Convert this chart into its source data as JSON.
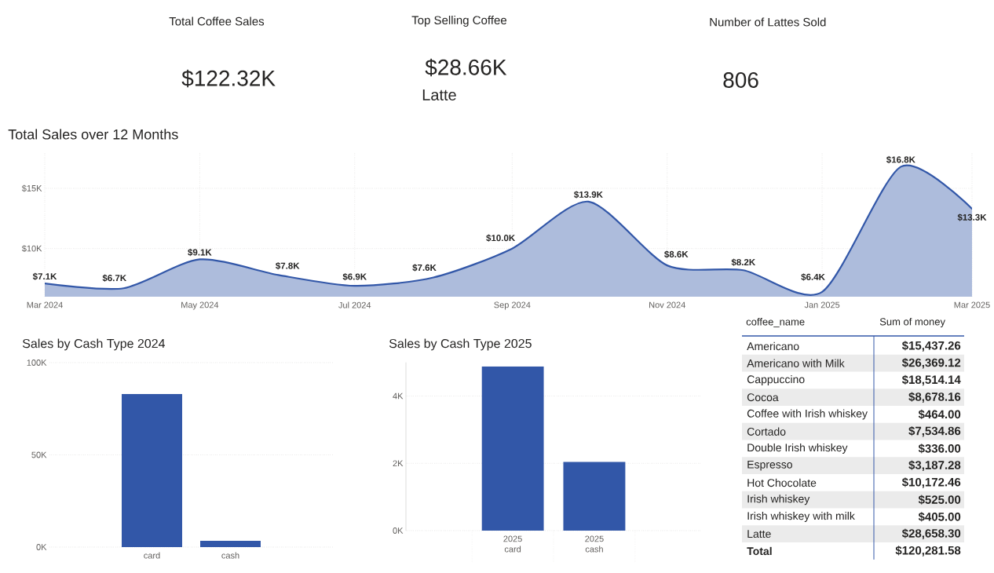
{
  "chart_data": [
    {
      "type": "other",
      "title": "Total Coffee Sales",
      "annotations": [
        "$122.32K"
      ]
    },
    {
      "type": "other",
      "title": "Top Selling Coffee",
      "annotations": [
        "$28.66K",
        "Latte"
      ]
    },
    {
      "type": "other",
      "title": "Number of Lattes Sold",
      "annotations": [
        "806"
      ]
    },
    {
      "type": "area",
      "title": "Total Sales over 12 Months",
      "x": [
        "2024-03",
        "2024-04",
        "2024-05",
        "2024-06",
        "2024-07",
        "2024-08",
        "2024-09",
        "2024-10",
        "2024-11",
        "2024-12",
        "2025-01",
        "2025-02",
        "2025-03"
      ],
      "values": [
        7100,
        6700,
        9100,
        7800,
        6900,
        7600,
        10000,
        13900,
        8600,
        8200,
        6400,
        16800,
        13300
      ],
      "value_labels": [
        "$7.1K",
        "$6.7K",
        "$9.1K",
        "$7.8K",
        "$6.9K",
        "$7.6K",
        "$10.0K",
        "$13.9K",
        "$8.6K",
        "$8.2K",
        "$6.4K",
        "$16.8K",
        "$13.3K"
      ],
      "color": "#3257a8",
      "xlim": [
        "2024-03",
        "2025-03"
      ],
      "xticks": [
        {
          "value": "2024-03",
          "label": "Mar 2024"
        },
        {
          "value": "2024-05",
          "label": "May 2024"
        },
        {
          "value": "2024-07",
          "label": "Jul 2024"
        },
        {
          "value": "2024-09",
          "label": "Sep 2024"
        },
        {
          "value": "2024-11",
          "label": "Nov 2024"
        },
        {
          "value": "2025-01",
          "label": "Jan 2025"
        },
        {
          "value": "2025-03",
          "label": "Mar 2025"
        }
      ],
      "ylim": [
        6000,
        18000
      ],
      "yticks": [
        {
          "value": 10000,
          "label": "$10K"
        },
        {
          "value": 15000,
          "label": "$15K"
        }
      ],
      "grid": true,
      "marker": "none",
      "line_style": "solid"
    },
    {
      "type": "bar",
      "title": "Sales by Cash Type 2024",
      "categories": [
        "card",
        "cash"
      ],
      "values": [
        83000,
        3400
      ],
      "color": "#3257a8",
      "ylim": [
        0,
        100000
      ],
      "yticks": [
        {
          "value": 0,
          "label": "0K"
        },
        {
          "value": 50000,
          "label": "50K"
        },
        {
          "value": 100000,
          "label": "100K"
        }
      ],
      "grid": "y"
    },
    {
      "type": "bar",
      "title": "Sales by Cash Type 2025",
      "categories": [
        "2025 card",
        "2025 cash"
      ],
      "values": [
        4880,
        2040
      ],
      "color": "#3257a8",
      "ylim": [
        0,
        5000
      ],
      "yticks": [
        {
          "value": 0,
          "label": "0K"
        },
        {
          "value": 2000,
          "label": "2K"
        },
        {
          "value": 4000,
          "label": "4K"
        }
      ],
      "grid": "y"
    },
    {
      "type": "other",
      "xlabel": "coffee_name",
      "ylabel": "Sum of money",
      "categories": [
        "Americano",
        "Americano with Milk",
        "Cappuccino",
        "Cocoa",
        "Coffee with Irish whiskey",
        "Cortado",
        "Double Irish whiskey",
        "Espresso",
        "Hot Chocolate",
        "Irish whiskey",
        "Irish whiskey with milk",
        "Latte"
      ],
      "value_labels": [
        "$15,437.26",
        "$26,369.12",
        "$18,514.14",
        "$8,678.16",
        "$464.00",
        "$7,534.86",
        "$336.00",
        "$3,187.28",
        "$10,172.46",
        "$525.00",
        "$405.00",
        "$28,658.30"
      ],
      "annotations": [
        "Total",
        "$120,281.58"
      ]
    }
  ]
}
